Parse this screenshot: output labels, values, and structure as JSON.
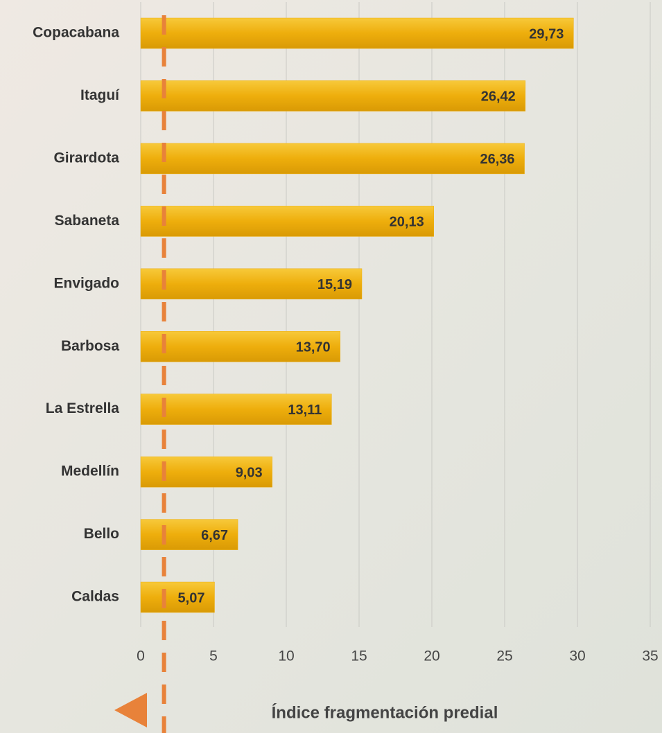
{
  "chart_data": {
    "type": "bar",
    "orientation": "horizontal",
    "categories": [
      "Copacabana",
      "Itaguí",
      "Girardota",
      "Sabaneta",
      "Envigado",
      "Barbosa",
      "La Estrella",
      "Medellín",
      "Bello",
      "Caldas"
    ],
    "values": [
      29.73,
      26.42,
      26.36,
      20.13,
      15.19,
      13.7,
      13.11,
      9.03,
      6.67,
      5.07
    ],
    "value_labels": [
      "29,73",
      "26,42",
      "26,36",
      "20,13",
      "15,19",
      "13,70",
      "13,11",
      "9,03",
      "6,67",
      "5,07"
    ],
    "color": "#eeae0c",
    "xlim": [
      0,
      35
    ],
    "xticks": [
      0,
      5,
      10,
      15,
      20,
      25,
      30,
      35
    ],
    "grid": true,
    "x_label": "Índice fragmentación predial",
    "reference_line": {
      "value": 1.6,
      "color": "#e8823a"
    }
  }
}
